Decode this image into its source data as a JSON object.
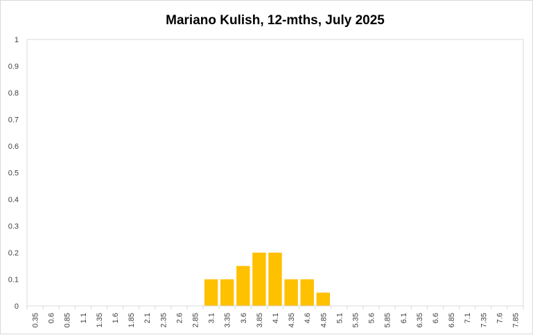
{
  "chart_data": {
    "type": "bar",
    "title": "Mariano Kulish, 12-mths, July 2025",
    "xlabel": "",
    "ylabel": "",
    "ylim": [
      0,
      1
    ],
    "yticks": [
      "0",
      "0.1",
      "0.2",
      "0.3",
      "0.4",
      "0.5",
      "0.6",
      "0.7",
      "0.8",
      "0.9",
      "1"
    ],
    "categories": [
      "0.35",
      "0.6",
      "0.85",
      "1.1",
      "1.35",
      "1.6",
      "1.85",
      "2.1",
      "2.35",
      "2.6",
      "2.85",
      "3.1",
      "3.35",
      "3.6",
      "3.85",
      "4.1",
      "4.35",
      "4.6",
      "4.85",
      "5.1",
      "5.35",
      "5.6",
      "5.85",
      "6.1",
      "6.35",
      "6.6",
      "6.85",
      "7.1",
      "7.35",
      "7.6",
      "7.85"
    ],
    "values": [
      0,
      0,
      0,
      0,
      0,
      0,
      0,
      0,
      0,
      0,
      0,
      0.1,
      0.1,
      0.15,
      0.2,
      0.2,
      0.1,
      0.1,
      0.05,
      0,
      0,
      0,
      0,
      0,
      0,
      0,
      0,
      0,
      0,
      0,
      0
    ],
    "bar_color": "#FFC000",
    "grid": false,
    "legend": "none"
  }
}
